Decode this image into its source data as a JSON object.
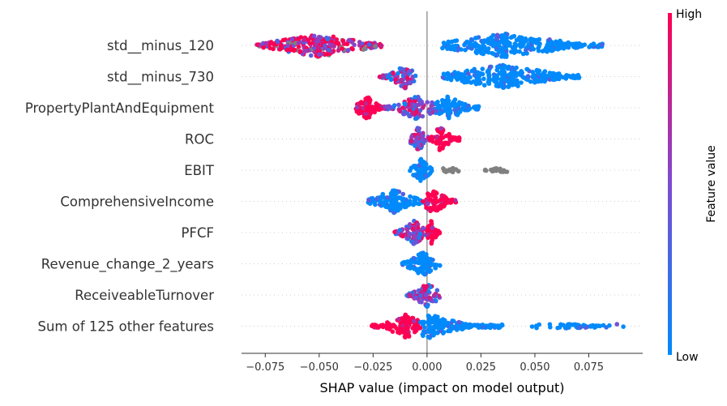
{
  "chart_data": {
    "type": "scatter",
    "subtype": "shap-beeswarm",
    "xlabel": "SHAP value (impact on model output)",
    "xlim": [
      -0.086,
      0.1
    ],
    "xticks": [
      -0.075,
      -0.05,
      -0.025,
      0.0,
      0.025,
      0.05,
      0.075
    ],
    "xtick_labels": [
      "−0.075",
      "−0.050",
      "−0.025",
      "0.000",
      "0.025",
      "0.050",
      "0.075"
    ],
    "colorbar": {
      "label": "Feature value",
      "high_label": "High",
      "low_label": "Low",
      "colors": [
        "#008afb",
        "#7d4bd2",
        "#ff0052"
      ]
    },
    "missing_color": "#808080",
    "features": [
      {
        "name": "std__minus_120",
        "clusters": [
          {
            "min": -0.079,
            "max": -0.021,
            "peak": -0.05,
            "color": "mixed-high"
          },
          {
            "min": 0.007,
            "max": 0.082,
            "peak": 0.036,
            "color": "low"
          }
        ]
      },
      {
        "name": "std__minus_730",
        "clusters": [
          {
            "min": -0.022,
            "max": -0.005,
            "peak": -0.01,
            "color": "mixed"
          },
          {
            "min": 0.007,
            "max": 0.071,
            "peak": 0.035,
            "color": "low"
          }
        ]
      },
      {
        "name": "PropertyPlantAndEquipment",
        "clusters": [
          {
            "min": -0.033,
            "max": -0.02,
            "peak": -0.028,
            "color": "high"
          },
          {
            "min": -0.02,
            "max": 0.004,
            "peak": -0.005,
            "color": "mixed"
          },
          {
            "min": 0.004,
            "max": 0.024,
            "peak": 0.01,
            "color": "low"
          }
        ]
      },
      {
        "name": "ROC",
        "clusters": [
          {
            "min": -0.008,
            "max": 0.002,
            "peak": -0.004,
            "color": "mixed"
          },
          {
            "min": 0.002,
            "max": 0.015,
            "peak": 0.006,
            "color": "high"
          }
        ]
      },
      {
        "name": "EBIT",
        "clusters": [
          {
            "min": -0.008,
            "max": 0.003,
            "peak": -0.003,
            "color": "low"
          },
          {
            "min": 0.007,
            "max": 0.016,
            "peak": 0.012,
            "color": "missing"
          },
          {
            "min": 0.026,
            "max": 0.039,
            "peak": 0.032,
            "color": "missing"
          }
        ]
      },
      {
        "name": "ComprehensiveIncome",
        "clusters": [
          {
            "min": -0.028,
            "max": -0.002,
            "peak": -0.015,
            "color": "low"
          },
          {
            "min": -0.002,
            "max": 0.014,
            "peak": 0.003,
            "color": "high"
          }
        ]
      },
      {
        "name": "PFCF",
        "clusters": [
          {
            "min": -0.015,
            "max": 0.0,
            "peak": -0.006,
            "color": "mixed"
          },
          {
            "min": 0.0,
            "max": 0.006,
            "peak": 0.002,
            "color": "high"
          }
        ]
      },
      {
        "name": "Revenue_change_2_years",
        "clusters": [
          {
            "min": -0.012,
            "max": 0.006,
            "peak": -0.002,
            "color": "low"
          }
        ]
      },
      {
        "name": "ReceiveableTurnover",
        "clusters": [
          {
            "min": -0.01,
            "max": 0.006,
            "peak": 0.0,
            "color": "mixed"
          }
        ]
      },
      {
        "name": "Sum of 125 other features",
        "clusters": [
          {
            "min": -0.026,
            "max": -0.003,
            "peak": -0.01,
            "color": "high"
          },
          {
            "min": -0.003,
            "max": 0.035,
            "peak": 0.001,
            "color": "low"
          },
          {
            "min": 0.048,
            "max": 0.092,
            "peak": 0.07,
            "color": "low-sparse"
          }
        ]
      }
    ]
  }
}
